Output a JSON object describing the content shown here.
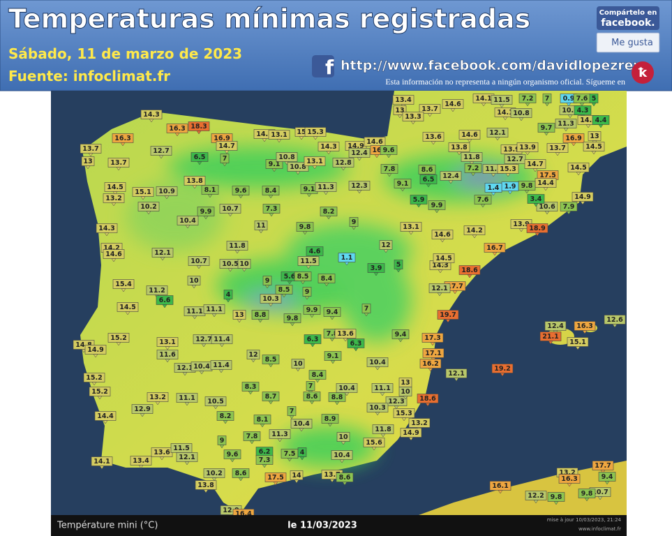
{
  "header": {
    "title": "Temperaturas mínimas registradas",
    "date": "Sábado, 11 de marzo de 2023",
    "source": "Fuente: infoclimat.fr",
    "facebook_url": "http://www.facebook.com/davidlopezrey",
    "disclaimer": "Esta información no representa a ningún organismo oficial. Sígueme en"
  },
  "share": {
    "line1": "Compártelo en",
    "line2": "facebook.",
    "like": "Me gusta"
  },
  "footer": {
    "legend": "Température mini (°C)",
    "date": "le 11/03/2023",
    "update": "mise à jour 10/03/2023, 21:24",
    "site": "www.infoclimat.fr"
  },
  "map": {
    "stations": [
      14.3,
      16.3,
      18.3,
      16.3,
      13.7,
      12.7,
      16.9,
      14.7,
      14.1,
      13.1,
      15,
      15.3,
      14.3,
      14.9,
      12.4,
      14.6,
      16,
      9.6,
      13.4,
      13.7,
      14.6,
      14.1,
      11.5,
      7.2,
      7,
      0.9,
      7.6,
      5,
      10.1,
      4.3,
      14.2,
      4.4,
      13,
      13.3,
      14.1,
      10.8,
      13.6,
      14.6,
      12.1,
      9.7,
      11.3,
      16.9,
      13,
      14.5,
      13.8,
      11.8,
      13.9,
      13.9,
      13.7,
      12.7,
      14.7,
      17.5,
      14.4,
      14.5,
      14.9,
      7.9,
      10.6,
      3.4,
      9.8,
      1.9,
      1.4,
      7.6,
      12.4,
      7.2,
      11.5,
      15.3,
      8.6,
      6.5,
      7.8,
      9.1,
      5.9,
      9.9,
      13.1,
      14.2,
      13.9,
      18.9,
      14.6,
      16.7,
      12,
      14.3,
      14.5,
      18.6,
      17.7,
      12.1,
      19.7,
      17.3,
      17.1,
      16.2,
      12.1,
      19.2,
      18.6,
      13.2,
      14.9,
      15.3,
      12.3,
      13,
      10,
      10.3,
      11.1,
      10.4,
      9.4,
      11.8,
      15.6,
      12.4,
      16.3,
      12.6,
      21.1,
      15.1,
      13,
      13.7,
      14.5,
      15.1,
      10.9,
      13.2,
      10.2,
      13.8,
      6.5,
      7,
      9.1,
      10.8,
      10.8,
      13.1,
      12.8,
      8.1,
      9.6,
      8.4,
      9.1,
      11.3,
      12.3,
      9.9,
      10.7,
      7.3,
      8.2,
      10.4,
      14.3,
      11,
      9.8,
      9,
      14.2,
      14.6,
      12.1,
      11.8,
      10.7,
      10.5,
      10,
      4.6,
      11.5,
      1.1,
      3.9,
      5,
      15.4,
      11.2,
      6.6,
      10,
      9,
      5.6,
      8.5,
      8.4,
      8.5,
      9,
      4,
      10.3,
      14.5,
      11.1,
      11.1,
      13,
      8.8,
      9.9,
      9.4,
      7,
      9.8,
      15.2,
      14.8,
      14.9,
      13.1,
      11.6,
      12.7,
      11.4,
      6.3,
      7.8,
      13.6,
      6.3,
      9.1,
      12,
      8.5,
      10,
      8.4,
      15.2,
      12.1,
      10.4,
      11.4,
      15.2,
      13.2,
      11.1,
      10.5,
      8.3,
      8.7,
      7,
      8.6,
      8.8,
      10.4,
      12.9,
      14.4,
      8.2,
      8.1,
      7,
      10.4,
      8.9,
      7.8,
      11.3,
      10,
      9,
      13.6,
      11.5,
      12.1,
      9.6,
      6.2,
      7.3,
      7.5,
      4,
      10.4,
      14.1,
      13.4,
      10.2,
      8.6,
      17.5,
      14,
      13.7,
      8.6,
      13.8,
      12.9,
      16.4,
      16.1,
      12.2,
      9.8,
      13.2,
      16.3,
      17.7,
      9.4,
      10.7,
      9.8
    ]
  }
}
